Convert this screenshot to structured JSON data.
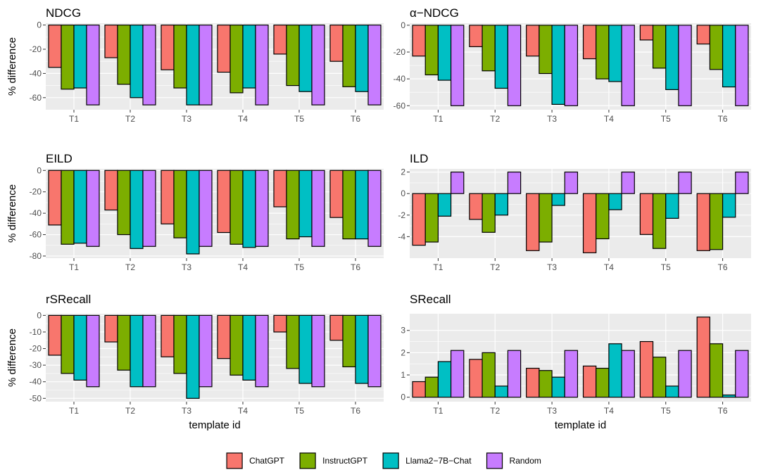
{
  "colors": {
    "ChatGPT": "#F8766D",
    "InstructGPT": "#7CAE00",
    "Llama2-7B-Chat": "#00BFC4",
    "Random": "#C77CFF",
    "panel_bg": "#EBEBEB",
    "grid": "#FFFFFF"
  },
  "legend": {
    "items": [
      {
        "label": "ChatGPT",
        "color": "#F8766D"
      },
      {
        "label": "InstructGPT",
        "color": "#7CAE00"
      },
      {
        "label": "Llama2−7B−Chat",
        "color": "#00BFC4"
      },
      {
        "label": "Random",
        "color": "#C77CFF"
      }
    ]
  },
  "chart_data": [
    {
      "type": "bar",
      "title": "NDCG",
      "xlabel": "",
      "ylabel": "% difference",
      "categories": [
        "T1",
        "T2",
        "T3",
        "T4",
        "T5",
        "T6"
      ],
      "ylim": [
        -70,
        1.5
      ],
      "yticks": [
        0,
        -20,
        -40,
        -60
      ],
      "ytick_labels": [
        "0",
        "-20",
        "-40",
        "-60"
      ],
      "series": [
        {
          "name": "ChatGPT",
          "values": [
            -35,
            -27,
            -37,
            -39,
            -24,
            -30
          ]
        },
        {
          "name": "InstructGPT",
          "values": [
            -53,
            -49,
            -52,
            -56,
            -50,
            -51
          ]
        },
        {
          "name": "Llama2-7B-Chat",
          "values": [
            -52,
            -60,
            -66,
            -52,
            -55,
            -55
          ]
        },
        {
          "name": "Random",
          "values": [
            -66,
            -66,
            -66,
            -66,
            -66,
            -66
          ]
        }
      ]
    },
    {
      "type": "bar",
      "title": "α−NDCG",
      "xlabel": "",
      "ylabel": "",
      "categories": [
        "T1",
        "T2",
        "T3",
        "T4",
        "T5",
        "T6"
      ],
      "ylim": [
        -63,
        1.5
      ],
      "yticks": [
        0,
        -20,
        -40,
        -60
      ],
      "ytick_labels": [
        "0",
        "-20",
        "-40",
        "-60"
      ],
      "series": [
        {
          "name": "ChatGPT",
          "values": [
            -23,
            -16,
            -23,
            -25,
            -11,
            -14
          ]
        },
        {
          "name": "InstructGPT",
          "values": [
            -37,
            -34,
            -36,
            -40,
            -32,
            -33
          ]
        },
        {
          "name": "Llama2-7B-Chat",
          "values": [
            -41,
            -47,
            -59,
            -42,
            -48,
            -46
          ]
        },
        {
          "name": "Random",
          "values": [
            -60,
            -60,
            -60,
            -60,
            -60,
            -60
          ]
        }
      ]
    },
    {
      "type": "bar",
      "title": "EILD",
      "xlabel": "",
      "ylabel": "% difference",
      "categories": [
        "T1",
        "T2",
        "T3",
        "T4",
        "T5",
        "T6"
      ],
      "ylim": [
        -82,
        1.5
      ],
      "yticks": [
        0,
        -20,
        -40,
        -60,
        -80
      ],
      "ytick_labels": [
        "0",
        "-20",
        "-40",
        "-60",
        "-80"
      ],
      "series": [
        {
          "name": "ChatGPT",
          "values": [
            -51,
            -37,
            -50,
            -58,
            -34,
            -44
          ]
        },
        {
          "name": "InstructGPT",
          "values": [
            -69,
            -60,
            -63,
            -69,
            -64,
            -64
          ]
        },
        {
          "name": "Llama2-7B-Chat",
          "values": [
            -68,
            -73,
            -78,
            -72,
            -62,
            -64
          ]
        },
        {
          "name": "Random",
          "values": [
            -71,
            -71,
            -71,
            -71,
            -71,
            -71
          ]
        }
      ]
    },
    {
      "type": "bar",
      "title": "ILD",
      "xlabel": "",
      "ylabel": "",
      "categories": [
        "T1",
        "T2",
        "T3",
        "T4",
        "T5",
        "T6"
      ],
      "ylim": [
        -6,
        2.3
      ],
      "yticks": [
        2,
        0,
        -2,
        -4
      ],
      "ytick_labels": [
        "2",
        "0",
        "-2",
        "-4"
      ],
      "series": [
        {
          "name": "ChatGPT",
          "values": [
            -4.8,
            -2.4,
            -5.3,
            -5.5,
            -3.8,
            -5.3
          ]
        },
        {
          "name": "InstructGPT",
          "values": [
            -4.5,
            -3.6,
            -4.5,
            -4.2,
            -5.1,
            -5.2
          ]
        },
        {
          "name": "Llama2-7B-Chat",
          "values": [
            -2.1,
            -2.0,
            -1.1,
            -1.5,
            -2.3,
            -2.2
          ]
        },
        {
          "name": "Random",
          "values": [
            2.0,
            2.0,
            2.0,
            2.0,
            2.0,
            2.0
          ]
        }
      ]
    },
    {
      "type": "bar",
      "title": "rSRecall",
      "xlabel": "template id",
      "ylabel": "% difference",
      "categories": [
        "T1",
        "T2",
        "T3",
        "T4",
        "T5",
        "T6"
      ],
      "ylim": [
        -52,
        1
      ],
      "yticks": [
        0,
        -10,
        -20,
        -30,
        -40,
        -50
      ],
      "ytick_labels": [
        "0",
        "-10",
        "-20",
        "-30",
        "-40",
        "-50"
      ],
      "series": [
        {
          "name": "ChatGPT",
          "values": [
            -24,
            -16,
            -25,
            -26,
            -10,
            -15
          ]
        },
        {
          "name": "InstructGPT",
          "values": [
            -35,
            -33,
            -35,
            -36,
            -32,
            -31
          ]
        },
        {
          "name": "Llama2-7B-Chat",
          "values": [
            -39,
            -43,
            -50,
            -39,
            -41,
            -41
          ]
        },
        {
          "name": "Random",
          "values": [
            -43,
            -43,
            -43,
            -43,
            -43,
            -43
          ]
        }
      ]
    },
    {
      "type": "bar",
      "title": "SRecall",
      "xlabel": "template id",
      "ylabel": "",
      "categories": [
        "T1",
        "T2",
        "T3",
        "T4",
        "T5",
        "T6"
      ],
      "ylim": [
        -0.2,
        3.75
      ],
      "yticks": [
        0,
        1,
        2,
        3
      ],
      "ytick_labels": [
        "0",
        "1",
        "2",
        "3"
      ],
      "series": [
        {
          "name": "ChatGPT",
          "values": [
            0.7,
            1.7,
            1.3,
            1.4,
            2.5,
            3.6
          ]
        },
        {
          "name": "InstructGPT",
          "values": [
            0.9,
            2.0,
            1.2,
            1.3,
            1.8,
            2.4
          ]
        },
        {
          "name": "Llama2-7B-Chat",
          "values": [
            1.6,
            0.5,
            0.9,
            2.4,
            0.5,
            0.1
          ]
        },
        {
          "name": "Random",
          "values": [
            2.1,
            2.1,
            2.1,
            2.1,
            2.1,
            2.1
          ]
        }
      ]
    }
  ]
}
